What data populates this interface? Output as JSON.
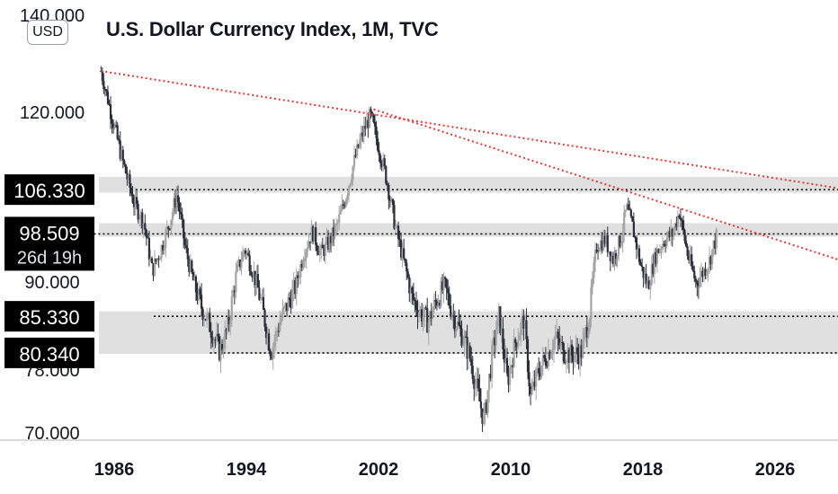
{
  "header": {
    "title": "U.S. Dollar Currency Index, 1M, TVC",
    "currency_chip": "USD"
  },
  "colors": {
    "candle": "#2a2e39",
    "candle_light": "#a5a5a5",
    "trendline": "#e53935",
    "zone": "#e0e0e0",
    "label_bg": "#000000"
  },
  "chart_data": {
    "type": "candlestick",
    "title": "U.S. Dollar Currency Index, 1M, TVC",
    "x_ticks": [
      "1986",
      "1994",
      "2002",
      "2010",
      "2018",
      "2026"
    ],
    "y_ticks": [
      "140.000",
      "120.000",
      "90.000",
      "78.000",
      "70.000"
    ],
    "ylim": [
      70,
      140
    ],
    "xlim": [
      1984.5,
      2030
    ],
    "price_labels": [
      {
        "value": 106.33,
        "text": "106.330"
      },
      {
        "value": 98.509,
        "text": "98.509",
        "sub": "26d 19h"
      },
      {
        "value": 85.33,
        "text": "85.330"
      },
      {
        "value": 80.34,
        "text": "80.340"
      }
    ],
    "zones": [
      {
        "from": 105.8,
        "to": 108.6
      },
      {
        "from": 98.0,
        "to": 100.4
      },
      {
        "from": 80.2,
        "to": 86.0
      }
    ],
    "horizontal_levels": [
      {
        "value": 106.33,
        "from": 1987.3
      },
      {
        "value": 98.509,
        "from": 1984.5
      },
      {
        "value": 85.33,
        "from": 1988.4
      },
      {
        "value": 80.34,
        "from": 1991.8
      }
    ],
    "trendlines": [
      {
        "x1": 1985.2,
        "y1": 128.5,
        "x2": 2030,
        "y2": 106.5
      },
      {
        "x1": 2001.7,
        "y1": 120.6,
        "x2": 2030,
        "y2": 93.8
      }
    ],
    "price_path": [
      [
        1985.2,
        128.5
      ],
      [
        1985.8,
        120.0
      ],
      [
        1986.5,
        111.5
      ],
      [
        1987.2,
        104.0
      ],
      [
        1987.8,
        100.5
      ],
      [
        1988.3,
        92.0
      ],
      [
        1988.8,
        95.5
      ],
      [
        1989.3,
        100.0
      ],
      [
        1989.8,
        105.5
      ],
      [
        1990.3,
        96.0
      ],
      [
        1990.8,
        90.0
      ],
      [
        1991.3,
        86.5
      ],
      [
        1991.8,
        84.0
      ],
      [
        1992.4,
        80.5
      ],
      [
        1992.9,
        84.0
      ],
      [
        1993.4,
        91.5
      ],
      [
        1993.9,
        96.0
      ],
      [
        1994.5,
        91.0
      ],
      [
        1995.0,
        86.0
      ],
      [
        1995.5,
        80.5
      ],
      [
        1996.0,
        84.5
      ],
      [
        1996.5,
        87.0
      ],
      [
        1997.0,
        89.5
      ],
      [
        1997.5,
        95.5
      ],
      [
        1998.0,
        99.0
      ],
      [
        1998.5,
        95.0
      ],
      [
        1999.0,
        97.0
      ],
      [
        1999.5,
        100.0
      ],
      [
        2000.0,
        105.0
      ],
      [
        2000.5,
        111.0
      ],
      [
        2001.0,
        116.0
      ],
      [
        2001.5,
        119.5
      ],
      [
        2002.0,
        114.0
      ],
      [
        2002.5,
        108.0
      ],
      [
        2003.0,
        100.0
      ],
      [
        2003.5,
        94.0
      ],
      [
        2004.0,
        88.0
      ],
      [
        2004.5,
        86.0
      ],
      [
        2005.0,
        84.5
      ],
      [
        2005.5,
        87.5
      ],
      [
        2006.0,
        89.5
      ],
      [
        2006.5,
        85.5
      ],
      [
        2007.0,
        83.0
      ],
      [
        2007.5,
        80.0
      ],
      [
        2008.0,
        75.0
      ],
      [
        2008.4,
        71.5
      ],
      [
        2008.9,
        80.5
      ],
      [
        2009.3,
        85.5
      ],
      [
        2009.8,
        76.5
      ],
      [
        2010.3,
        82.0
      ],
      [
        2010.8,
        85.0
      ],
      [
        2011.2,
        74.5
      ],
      [
        2011.7,
        78.0
      ],
      [
        2012.2,
        80.0
      ],
      [
        2012.7,
        82.5
      ],
      [
        2013.2,
        80.5
      ],
      [
        2013.7,
        80.0
      ],
      [
        2014.3,
        80.5
      ],
      [
        2014.8,
        86.0
      ],
      [
        2015.2,
        96.5
      ],
      [
        2015.7,
        97.5
      ],
      [
        2016.2,
        94.0
      ],
      [
        2016.7,
        98.0
      ],
      [
        2017.0,
        103.0
      ],
      [
        2017.4,
        99.5
      ],
      [
        2017.9,
        92.5
      ],
      [
        2018.3,
        89.5
      ],
      [
        2018.8,
        95.0
      ],
      [
        2019.3,
        97.5
      ],
      [
        2019.8,
        98.5
      ],
      [
        2020.2,
        102.5
      ],
      [
        2020.7,
        95.0
      ],
      [
        2021.2,
        90.0
      ],
      [
        2021.7,
        92.0
      ],
      [
        2022.0,
        93.5
      ],
      [
        2022.5,
        98.5
      ]
    ]
  }
}
